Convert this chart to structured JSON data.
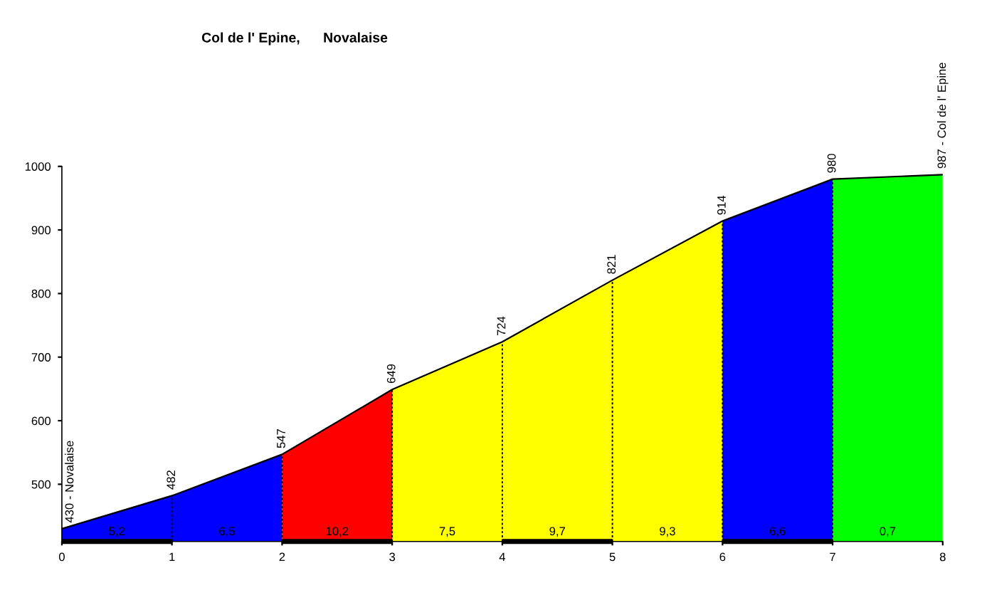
{
  "chart_data": {
    "type": "area",
    "title": "Col de l' Epine,      Novalaise",
    "series": [
      {
        "color": "#0000ff",
        "x": [
          0,
          1,
          2
        ],
        "values": [
          430,
          482,
          547
        ]
      },
      {
        "color": "#ff0000",
        "x": [
          2,
          3
        ],
        "values": [
          547,
          649
        ]
      },
      {
        "color": "#ffff00",
        "x": [
          3,
          4,
          5,
          6
        ],
        "values": [
          649,
          724,
          821,
          914
        ]
      },
      {
        "color": "#0000ff",
        "x": [
          6,
          7
        ],
        "values": [
          914,
          980
        ]
      },
      {
        "color": "#00ff00",
        "x": [
          7,
          8
        ],
        "values": [
          980,
          987
        ]
      },
      {
        "type": "line",
        "color": "#000000",
        "x": [
          0,
          1,
          2,
          3,
          4,
          5,
          6,
          7,
          8
        ],
        "values": [
          430,
          482,
          547,
          649,
          724,
          821,
          914,
          980,
          987
        ],
        "value_labels": [
          "430 - Novalaise",
          "482",
          "547",
          "649",
          "724",
          "821",
          "914",
          "980",
          "987 - Col de l' Epine"
        ]
      }
    ],
    "annotations": [
      "5,2",
      "6,5",
      "10,2",
      "7,5",
      "9,7",
      "9,3",
      "6,6",
      "0,7"
    ],
    "xlim": [
      0,
      8
    ],
    "xticks": [
      0,
      1,
      2,
      3,
      4,
      5,
      6,
      7,
      8
    ],
    "ylim": [
      410,
      1000
    ],
    "yticks": [
      500,
      600,
      700,
      800,
      900,
      1000
    ],
    "grid": "x",
    "legend": false
  }
}
